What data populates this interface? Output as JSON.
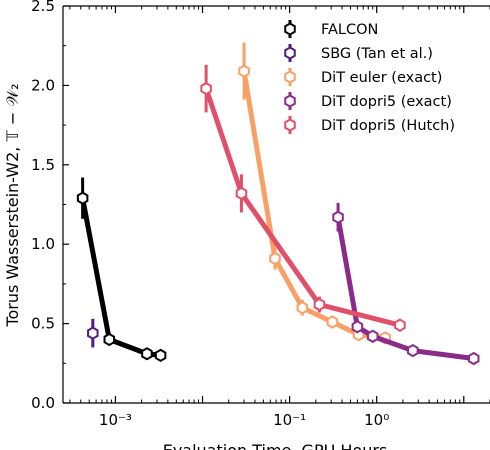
{
  "chart_data": {
    "type": "line",
    "xscale": "log",
    "xlabel": "Evaluation Time, GPU Hours",
    "ylabel": "Torus Wasserstein-W2, 𝕋 − 𝒲₂",
    "xlim": [
      0.00025,
      20
    ],
    "ylim": [
      0.0,
      2.5
    ],
    "grid": false,
    "legend_position": "top-right",
    "x_tick_labels": [
      "10⁻³",
      "10⁻¹",
      "10⁰"
    ],
    "y_tick_labels": [
      "0.0",
      "0.5",
      "1.0",
      "1.5",
      "2.0",
      "2.5"
    ],
    "series": [
      {
        "name": "FALCON",
        "color": "#000000",
        "x": [
          0.00042,
          0.00085,
          0.0023,
          0.0033
        ],
        "y": [
          1.29,
          0.4,
          0.31,
          0.3
        ],
        "err": [
          0.13,
          0.02,
          0.02,
          0.02
        ]
      },
      {
        "name": "SBG (Tan et al.)",
        "color": "#4f1c7f",
        "x": [
          0.00055
        ],
        "y": [
          0.44
        ],
        "err": [
          0.09
        ]
      },
      {
        "name": "DiT euler (exact)",
        "color": "#f9a066",
        "x": [
          0.03,
          0.068,
          0.14,
          0.31,
          0.62,
          1.25
        ],
        "y": [
          2.09,
          0.91,
          0.6,
          0.51,
          0.43,
          0.41
        ],
        "err": [
          0.18,
          0.07,
          0.05,
          0.04,
          0.03,
          0.03
        ]
      },
      {
        "name": "DiT dopri5 (exact)",
        "color": "#8a2b88",
        "x": [
          0.36,
          0.6,
          0.9,
          2.6,
          13.0
        ],
        "y": [
          1.17,
          0.48,
          0.42,
          0.33,
          0.28
        ],
        "err": [
          0.09,
          0.03,
          0.02,
          0.02,
          0.02
        ]
      },
      {
        "name": "DiT dopri5 (Hutch)",
        "color": "#e0506a",
        "x": [
          0.011,
          0.028,
          0.22,
          1.85
        ],
        "y": [
          1.98,
          1.32,
          0.62,
          0.49
        ],
        "err": [
          0.15,
          0.12,
          0.05,
          0.04
        ]
      }
    ]
  }
}
